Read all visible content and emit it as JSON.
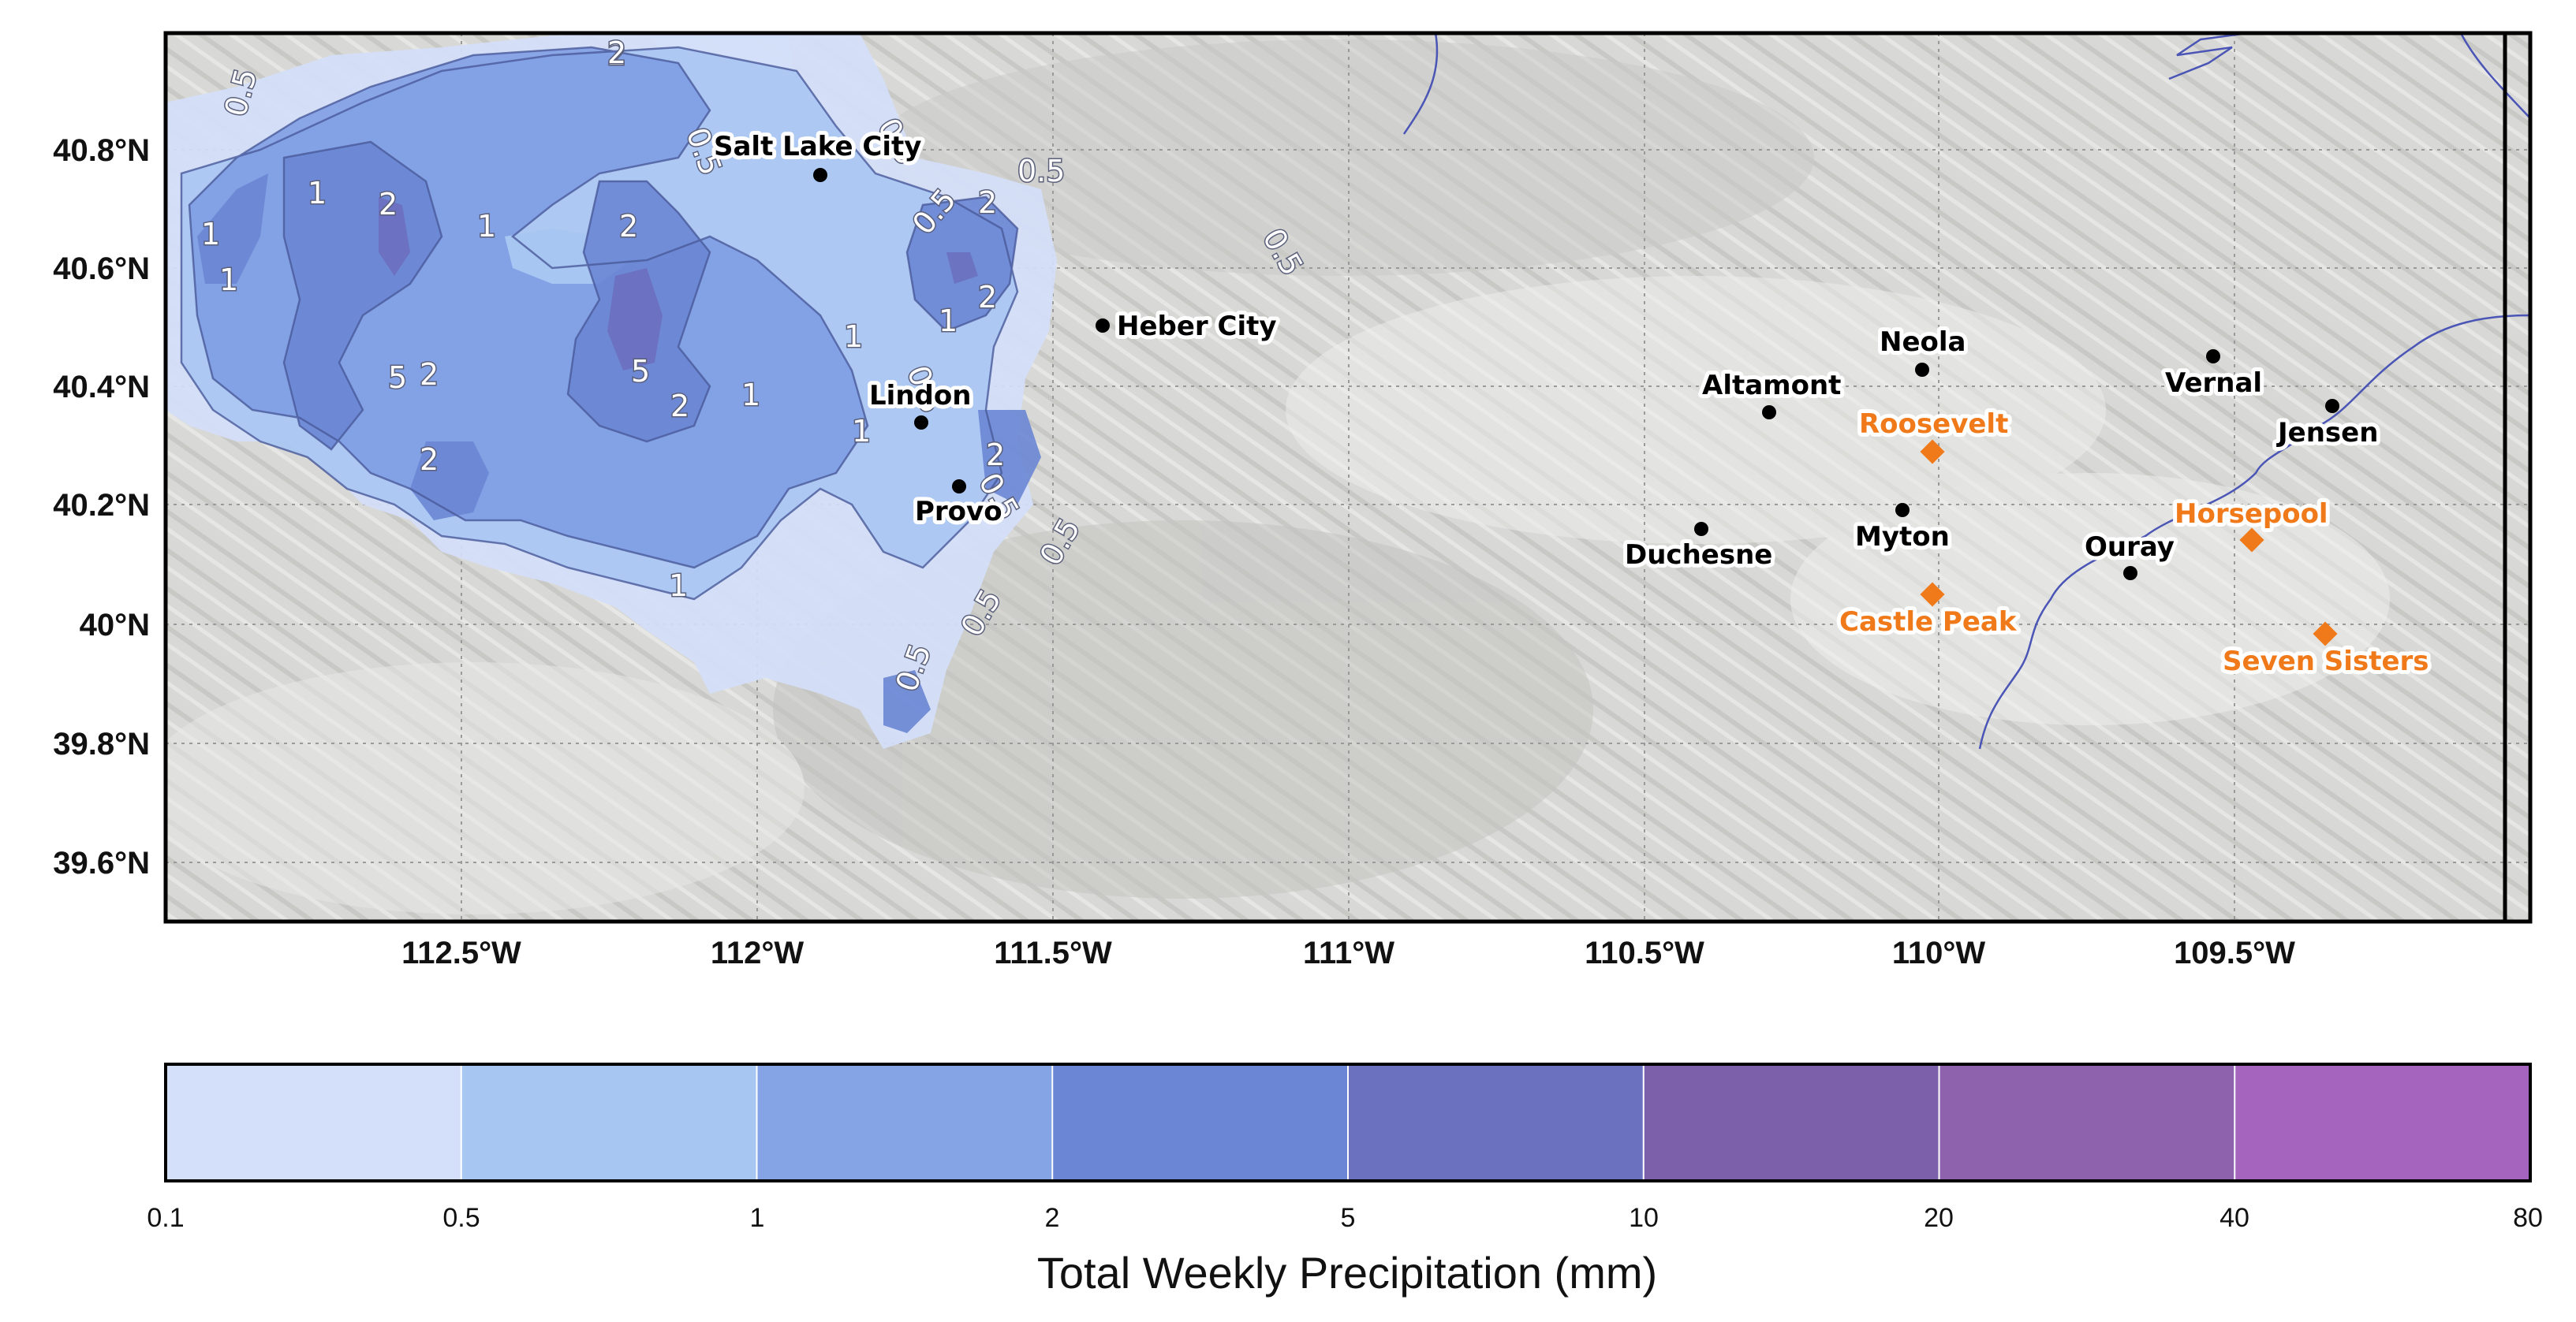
{
  "latitude_labels": [
    "40.8°N",
    "40.6°N",
    "40.4°N",
    "40.2°N",
    "40°N",
    "39.8°N",
    "39.6°N"
  ],
  "longitude_labels": [
    "112.5°W",
    "112°W",
    "111.5°W",
    "111°W",
    "110.5°W",
    "110°W",
    "109.5°W"
  ],
  "cities": [
    {
      "name": "Salt Lake City"
    },
    {
      "name": "Heber City"
    },
    {
      "name": "Lindon"
    },
    {
      "name": "Provo"
    },
    {
      "name": "Altamont"
    },
    {
      "name": "Neola"
    },
    {
      "name": "Vernal"
    },
    {
      "name": "Jensen"
    },
    {
      "name": "Duchesne"
    },
    {
      "name": "Myton"
    },
    {
      "name": "Ouray"
    }
  ],
  "stations": [
    {
      "name": "Roosevelt",
      "color": "#f07a1a"
    },
    {
      "name": "Horsepool",
      "color": "#f07a1a"
    },
    {
      "name": "Castle Peak",
      "color": "#f07a1a"
    },
    {
      "name": "Seven Sisters",
      "color": "#f07a1a"
    }
  ],
  "contour_labels": [
    "0.5",
    "2",
    "1",
    "2",
    "1",
    "1",
    "1",
    "2",
    "5",
    "2",
    "2",
    "5",
    "2",
    "1",
    "1",
    "2",
    "1",
    "0.5",
    "0.5",
    "2",
    "1",
    "2",
    "0.5",
    "1",
    "0.5",
    "0.5",
    "2",
    "0.5",
    "0.5",
    "0.5",
    "0.5",
    "0.5"
  ],
  "colorbar": {
    "title": "Total Weekly Precipitation (mm)",
    "ticks": [
      "0.1",
      "0.5",
      "1",
      "2",
      "5",
      "10",
      "20",
      "40",
      "80"
    ],
    "colors": [
      "#d4e0fa",
      "#a8c6f2",
      "#84a4e6",
      "#6a86d4",
      "#6b70bf",
      "#7c60a9",
      "#8f62ad",
      "#a564be"
    ]
  },
  "palette": {
    "river": "#4a55b5",
    "frame": "#000000",
    "terrain": "#d9d9d7"
  }
}
